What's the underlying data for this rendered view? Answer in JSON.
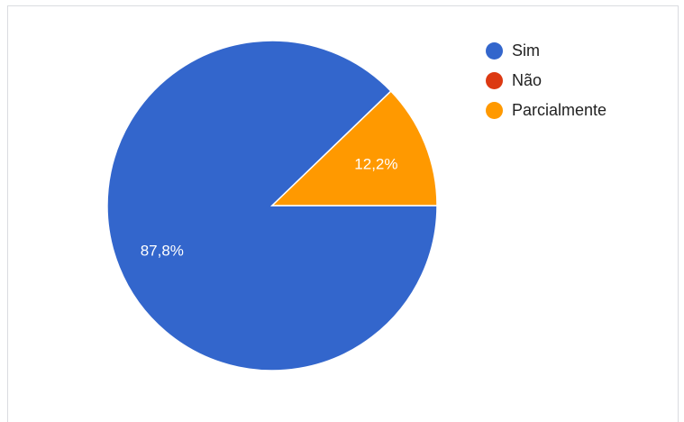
{
  "chart_data": {
    "type": "pie",
    "title": "",
    "categories": [
      "Sim",
      "Não",
      "Parcialmente"
    ],
    "values": [
      87.8,
      0,
      12.2
    ],
    "value_labels": [
      "87,8%",
      "",
      "12,2%"
    ],
    "colors": [
      "#3366cc",
      "#dc3912",
      "#ff9900"
    ],
    "legend_position": "top-right",
    "start_angle_deg": 0,
    "direction": "counterclockwise"
  }
}
